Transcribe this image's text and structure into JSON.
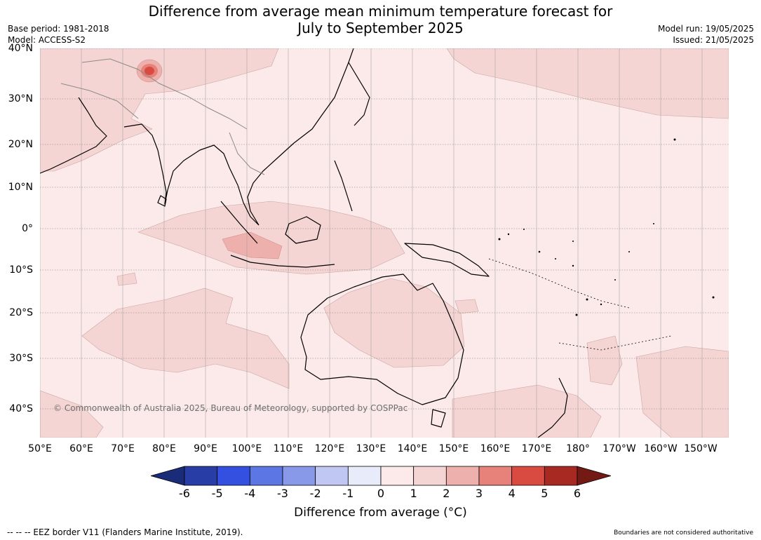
{
  "title": {
    "line1": "Difference from average mean minimum temperature forecast for",
    "line2": "July to September 2025"
  },
  "meta_left": {
    "base_period": "Base period: 1981-2018",
    "model": "Model: ACCESS-S2"
  },
  "meta_right": {
    "model_run": "Model run: 19/05/2025",
    "issued": "Issued: 21/05/2025"
  },
  "map": {
    "lat_labels": [
      "40°N",
      "30°N",
      "20°N",
      "10°N",
      "0°",
      "10°S",
      "20°S",
      "30°S",
      "40°S"
    ],
    "lon_labels": [
      "50°E",
      "60°E",
      "70°E",
      "80°E",
      "90°E",
      "100°E",
      "110°E",
      "120°E",
      "130°E",
      "140°E",
      "150°E",
      "160°E",
      "170°E",
      "180°",
      "170°W",
      "160°W",
      "150°W"
    ],
    "ocean_color": "#fbeae9",
    "anomaly_0_1_color": "#fbeae9",
    "anomaly_1_2_color": "#f4d5d3",
    "anomaly_2_3_color": "#eeb0ac",
    "anomaly_hotspot_color": "#d94b40",
    "copyright": "© Commonwealth of Australia 2025, Bureau of Meteorology, supported by COSPPac"
  },
  "colorbar": {
    "ticks": [
      "-6",
      "-5",
      "-4",
      "-3",
      "-2",
      "-1",
      "0",
      "1",
      "2",
      "3",
      "4",
      "5",
      "6"
    ],
    "colors": [
      "#283da6",
      "#3350e0",
      "#5c76e4",
      "#8899e9",
      "#c0c7f2",
      "#e8ebf9",
      "#fbeae9",
      "#f4d5d3",
      "#eeb0ac",
      "#e6827a",
      "#d94b40",
      "#a82822"
    ],
    "under_color": "#1a2b78",
    "over_color": "#741a15",
    "label": "Difference from average (°C)"
  },
  "footer": {
    "eez": "--  --  -- EEZ border V11 (Flanders Marine Institute, 2019).",
    "boundaries": "Boundaries are not considered authoritative"
  }
}
